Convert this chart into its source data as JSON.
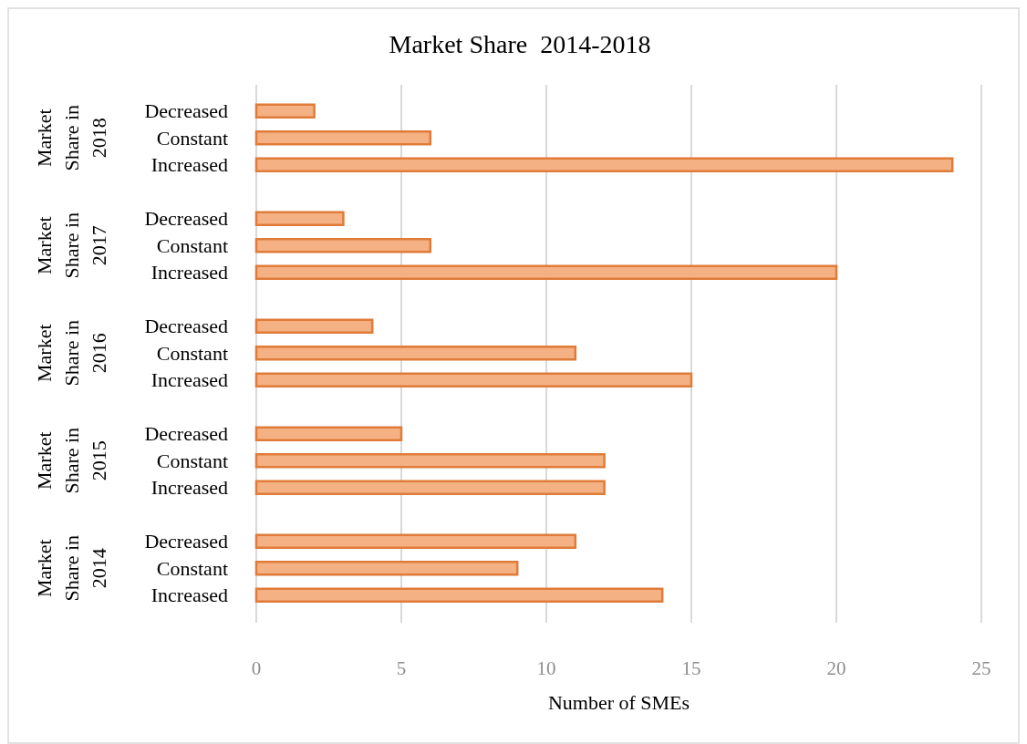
{
  "chart_data": {
    "type": "bar",
    "orientation": "horizontal",
    "title": "Market Share  2014-2018",
    "xlabel": "Number of SMEs",
    "categories": [
      "Decreased",
      "Constant",
      "Increased",
      "Decreased",
      "Constant",
      "Increased",
      "Decreased",
      "Constant",
      "Increased",
      "Decreased",
      "Constant",
      "Increased",
      "Decreased",
      "Constant",
      "Increased"
    ],
    "values": [
      2,
      6,
      24,
      3,
      6,
      20,
      4,
      11,
      15,
      5,
      12,
      12,
      11,
      9,
      14
    ],
    "color": "#f4b183",
    "annotations": [
      "Market Share in 2018",
      "Market Share in 2017",
      "Market Share in 2016",
      "Market Share in 2015",
      "Market Share in 2014"
    ],
    "xlim": [
      0,
      25
    ],
    "xticks": [
      0,
      5,
      10,
      15,
      20,
      25
    ],
    "grid": "x"
  }
}
